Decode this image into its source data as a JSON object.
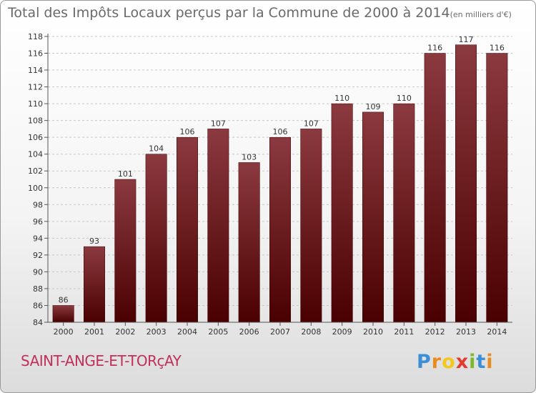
{
  "chart_data": {
    "type": "bar",
    "title": "Total des Impôts Locaux perçus par la Commune de 2000 à 2014",
    "title_unit": "(en milliers d'€)",
    "categories": [
      "2000",
      "2001",
      "2002",
      "2003",
      "2004",
      "2005",
      "2006",
      "2007",
      "2008",
      "2009",
      "2010",
      "2011",
      "2012",
      "2013",
      "2014"
    ],
    "values": [
      86,
      93,
      101,
      104,
      106,
      107,
      103,
      106,
      107,
      110,
      109,
      110,
      116,
      117,
      116
    ],
    "ylim": [
      84,
      118
    ],
    "yticks": [
      84,
      86,
      88,
      90,
      92,
      94,
      96,
      98,
      100,
      102,
      104,
      106,
      108,
      110,
      112,
      114,
      116,
      118
    ],
    "grid": "horizontal dashed",
    "bar_color_top": "#8b3a3f",
    "bar_color_bottom": "#4a0000"
  },
  "footer": {
    "commune": "SAINT-ANGE-ET-TORçAY",
    "logo_letters": [
      {
        "ch": "P",
        "color": "#3a8fd6"
      },
      {
        "ch": "r",
        "color": "#e98b1f"
      },
      {
        "ch": "o",
        "color": "#f2c81b"
      },
      {
        "ch": "x",
        "color": "#e23b2e"
      },
      {
        "ch": "i",
        "color": "#7ab929"
      },
      {
        "ch": "t",
        "color": "#3a8fd6"
      },
      {
        "ch": "i",
        "color": "#e98b1f"
      }
    ]
  }
}
